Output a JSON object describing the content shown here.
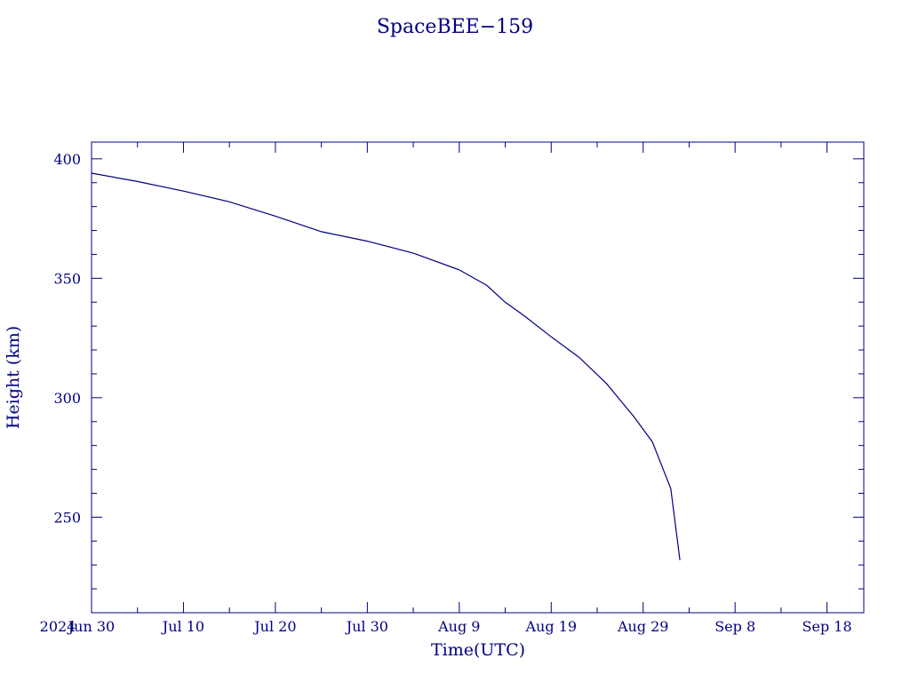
{
  "chart_data": {
    "type": "line",
    "title": "SpaceBEE−159",
    "xlabel": "Time(UTC)",
    "ylabel": "Height (km)",
    "year_label": "2024",
    "x_range": [
      "2024-06-30",
      "2024-09-22"
    ],
    "xlim": [
      "2024-06-30",
      "2024-09-22"
    ],
    "ylim": [
      210,
      407
    ],
    "x_ticks": [
      "2024-06-30",
      "2024-07-10",
      "2024-07-20",
      "2024-07-30",
      "2024-08-09",
      "2024-08-19",
      "2024-08-29",
      "2024-09-08",
      "2024-09-18"
    ],
    "x_tick_labels": [
      "Jun 30",
      "Jul 10",
      "Jul 20",
      "Jul 30",
      "Aug  9",
      "Aug 19",
      "Aug 29",
      "Sep  8",
      "Sep 18"
    ],
    "y_ticks": [
      250,
      300,
      350,
      400
    ],
    "y_tick_labels": [
      "250",
      "300",
      "350",
      "400"
    ],
    "y_minor_step": 10,
    "grid": false,
    "colors": {
      "axes": "#000080",
      "line": "#000080"
    },
    "series": [
      {
        "x": [
          "2024-06-30",
          "2024-07-05",
          "2024-07-10",
          "2024-07-15",
          "2024-07-20",
          "2024-07-25",
          "2024-07-30",
          "2024-08-04",
          "2024-08-09",
          "2024-08-12",
          "2024-08-14",
          "2024-08-16",
          "2024-08-19",
          "2024-08-22",
          "2024-08-25",
          "2024-08-28",
          "2024-08-30",
          "2024-09-01",
          "2024-09-02"
        ],
        "y": [
          394,
          390.5,
          386.5,
          382,
          376,
          369.5,
          365.5,
          360.5,
          353.5,
          347,
          340,
          334.5,
          325.5,
          317,
          306,
          292,
          281.5,
          262,
          232
        ]
      }
    ]
  }
}
